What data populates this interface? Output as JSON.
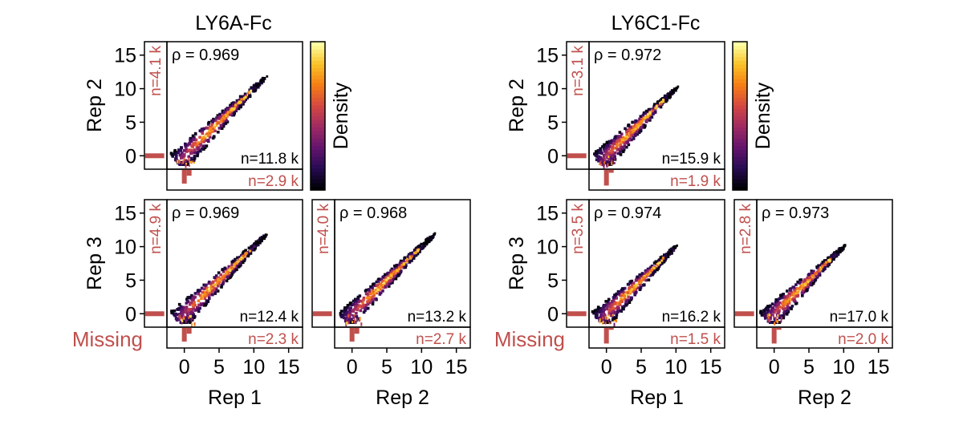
{
  "chart_data": [
    {
      "type": "scatter",
      "group": "LY6A-Fc",
      "panels": [
        {
          "x_rep": "Rep 1",
          "y_rep": "Rep 2",
          "rho_label": "ρ = 0.969",
          "n_both": "n=11.8 k",
          "n_missing_y": "n=4.1 k",
          "n_missing_x": "n=2.9 k",
          "missing_hist_y": [
            0.9
          ],
          "missing_hist_x": [
            0.7,
            0.3
          ],
          "trend_end": 12.0,
          "spread": 2.2
        },
        {
          "x_rep": "Rep 1",
          "y_rep": "Rep 3",
          "rho_label": "ρ = 0.969",
          "n_both": "n=12.4 k",
          "n_missing_y": "n=4.9 k",
          "n_missing_x": "n=2.3 k",
          "missing_hist_y": [
            0.9
          ],
          "missing_hist_x": [
            0.7,
            0.3
          ],
          "trend_end": 12.0,
          "spread": 2.2
        },
        {
          "x_rep": "Rep 2",
          "y_rep": "Rep 3",
          "rho_label": "ρ = 0.968",
          "n_both": "n=13.2 k",
          "n_missing_y": "n=4.0 k",
          "n_missing_x": "n=2.7 k",
          "missing_hist_y": [
            0.9
          ],
          "missing_hist_x": [
            0.7,
            0.3
          ],
          "trend_end": 12.0,
          "spread": 2.0
        }
      ],
      "xlim": [
        -2.5,
        17
      ],
      "ylim": [
        -2,
        17
      ],
      "xticks": [
        0,
        5,
        10,
        15
      ],
      "yticks": [
        0,
        5,
        10,
        15
      ],
      "colorbar_label": "Density",
      "missing_label": "Missing"
    },
    {
      "type": "scatter",
      "group": "LY6C1-Fc",
      "panels": [
        {
          "x_rep": "Rep 1",
          "y_rep": "Rep 2",
          "rho_label": "ρ = 0.972",
          "n_both": "n=15.9 k",
          "n_missing_y": "n=3.1 k",
          "n_missing_x": "n=1.9 k",
          "missing_hist_y": [
            0.9
          ],
          "missing_hist_x": [
            0.8,
            0.15
          ],
          "trend_end": 10.3,
          "spread": 2.2
        },
        {
          "x_rep": "Rep 1",
          "y_rep": "Rep 3",
          "rho_label": "ρ = 0.974",
          "n_both": "n=16.2 k",
          "n_missing_y": "n=3.5 k",
          "n_missing_x": "n=1.5 k",
          "missing_hist_y": [
            0.9
          ],
          "missing_hist_x": [
            0.8,
            0.1
          ],
          "trend_end": 10.3,
          "spread": 2.2
        },
        {
          "x_rep": "Rep 2",
          "y_rep": "Rep 3",
          "rho_label": "ρ = 0.973",
          "n_both": "n=17.0 k",
          "n_missing_y": "n=2.8 k",
          "n_missing_x": "n=2.0 k",
          "missing_hist_y": [
            0.9
          ],
          "missing_hist_x": [
            0.8,
            0.1
          ],
          "trend_end": 10.3,
          "spread": 2.2
        }
      ],
      "xlim": [
        -2.5,
        17
      ],
      "ylim": [
        -2,
        17
      ],
      "xticks": [
        0,
        5,
        10,
        15
      ],
      "yticks": [
        0,
        5,
        10,
        15
      ],
      "colorbar_label": "Density",
      "missing_label": "Missing"
    }
  ],
  "colors": {
    "missing": "#c0504d",
    "axis": "#000000"
  },
  "colormap": "inferno"
}
